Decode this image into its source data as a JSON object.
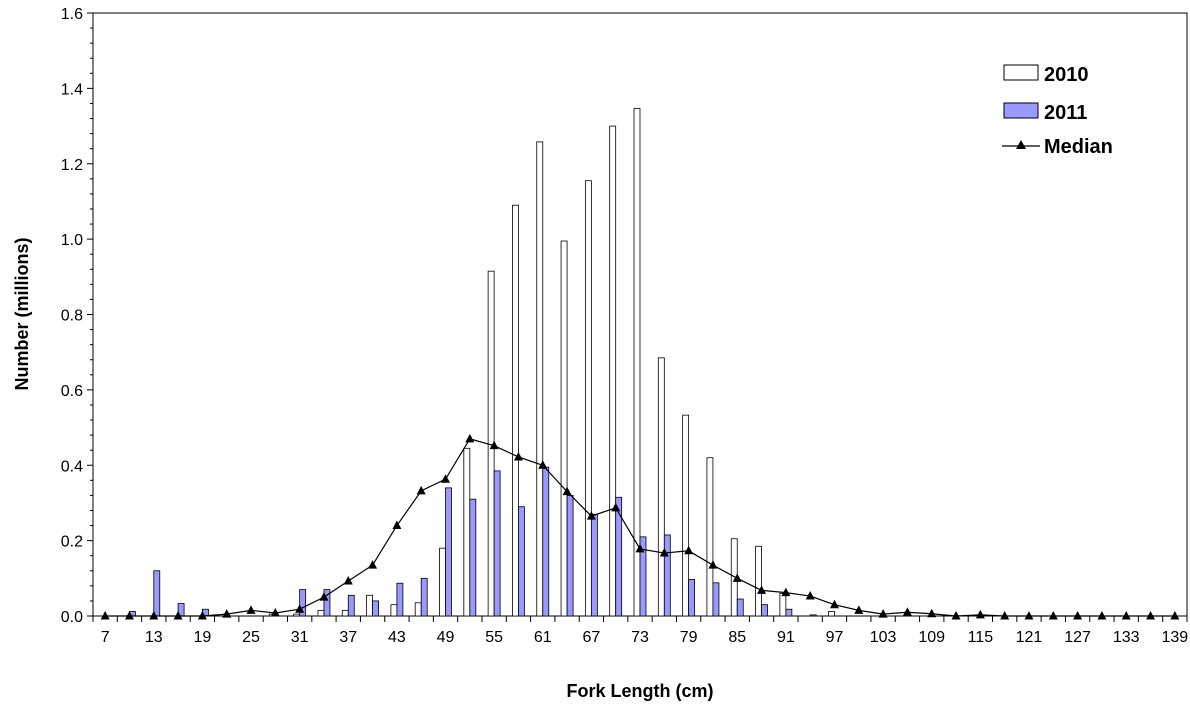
{
  "chart_data": {
    "type": "bar",
    "xlabel": "Fork Length (cm)",
    "ylabel": "Number (millions)",
    "ylim": [
      0,
      1.6
    ],
    "yticks": [
      "0.0",
      "0.2",
      "0.4",
      "0.6",
      "0.8",
      "1.0",
      "1.2",
      "1.4",
      "1.6"
    ],
    "grid": false,
    "legend_position": "top-right",
    "x": [
      7,
      10,
      13,
      16,
      19,
      22,
      25,
      28,
      31,
      34,
      37,
      40,
      43,
      46,
      49,
      52,
      55,
      58,
      61,
      64,
      67,
      70,
      73,
      76,
      79,
      82,
      85,
      88,
      91,
      94,
      97,
      100,
      103,
      106,
      109,
      112,
      115,
      118,
      121,
      124,
      127,
      130,
      133,
      136,
      139
    ],
    "x_tick_labels": [
      "7",
      "13",
      "19",
      "25",
      "31",
      "37",
      "43",
      "49",
      "55",
      "61",
      "67",
      "73",
      "79",
      "85",
      "91",
      "97",
      "103",
      "109",
      "115",
      "121",
      "127",
      "133",
      "139"
    ],
    "series": [
      {
        "name": "2010",
        "kind": "bar",
        "color": "#ffffff",
        "values": [
          0,
          0,
          0,
          0,
          0,
          0,
          0,
          0.005,
          0.005,
          0.015,
          0.015,
          0.055,
          0.03,
          0.035,
          0.18,
          0.445,
          0.915,
          1.09,
          1.258,
          0.995,
          1.155,
          1.3,
          1.347,
          0.685,
          0.533,
          0.42,
          0.205,
          0.185,
          0.06,
          0,
          0.012,
          0,
          0,
          0,
          0,
          0,
          0,
          0,
          0,
          0,
          0,
          0,
          0,
          0,
          0
        ]
      },
      {
        "name": "2011",
        "kind": "bar",
        "color": "#9999ff",
        "values": [
          0,
          0.012,
          0.12,
          0.033,
          0.018,
          0,
          0,
          0,
          0.07,
          0.07,
          0.055,
          0.04,
          0.087,
          0.1,
          0.34,
          0.31,
          0.385,
          0.29,
          0.395,
          0.32,
          0.27,
          0.315,
          0.21,
          0.215,
          0.097,
          0.088,
          0.045,
          0.03,
          0.018,
          0.003,
          0,
          0,
          0,
          0,
          0,
          0,
          0,
          0,
          0,
          0,
          0,
          0,
          0,
          0,
          0
        ]
      },
      {
        "name": "Median",
        "kind": "line",
        "color": "#000000",
        "marker": "triangle",
        "values": [
          0,
          0,
          0,
          0,
          0,
          0.005,
          0.015,
          0.008,
          0.018,
          0.05,
          0.093,
          0.135,
          0.24,
          0.332,
          0.363,
          0.47,
          0.452,
          0.422,
          0.4,
          0.33,
          0.265,
          0.287,
          0.178,
          0.167,
          0.173,
          0.135,
          0.1,
          0.068,
          0.062,
          0.053,
          0.03,
          0.015,
          0.005,
          0.01,
          0.006,
          0,
          0.003,
          0,
          0,
          0,
          0,
          0,
          0,
          0,
          0
        ]
      }
    ]
  }
}
